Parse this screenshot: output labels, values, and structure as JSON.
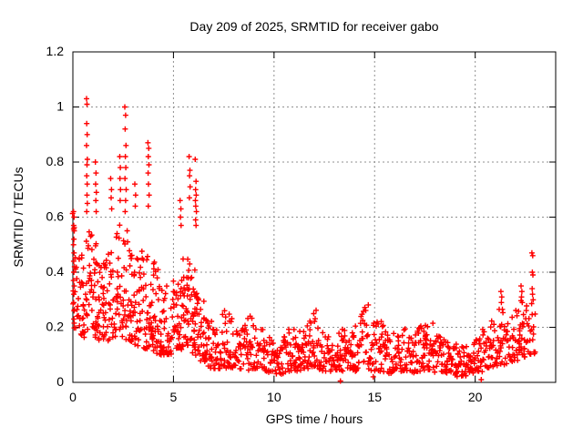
{
  "page": {
    "background": "#ffffff"
  },
  "chart_data": {
    "type": "scatter",
    "title": "Day 209 of 2025, SRMTID for receiver gabo",
    "xlabel": "GPS time / hours",
    "ylabel": "SRMTID / TECUs",
    "xlim": [
      0,
      24
    ],
    "ylim": [
      0,
      1.2
    ],
    "xticks": [
      0,
      5,
      10,
      15,
      20
    ],
    "yticks": [
      0,
      0.2,
      0.4,
      0.6,
      0.8,
      1,
      1.2
    ],
    "grid": true,
    "legend": "none",
    "marker": "plus",
    "marker_size_px": 7,
    "colors": {
      "points": "#ff0000",
      "grid": "#909090",
      "axis": "#000000",
      "text": "#000000"
    },
    "series_name": "SRMTID",
    "outlier_points": [
      [
        0.03,
        0.62
      ],
      [
        0.06,
        0.6
      ],
      [
        0.04,
        0.57
      ],
      [
        0.07,
        0.55
      ],
      [
        0.05,
        0.52
      ],
      [
        0.03,
        0.5
      ],
      [
        0.06,
        0.47
      ],
      [
        0.04,
        0.44
      ],
      [
        0.08,
        0.42
      ],
      [
        0.05,
        0.4
      ],
      [
        0.03,
        0.37
      ],
      [
        0.07,
        0.35
      ],
      [
        0.05,
        0.32
      ],
      [
        0.04,
        0.29
      ],
      [
        0.06,
        0.26
      ],
      [
        0.05,
        0.23
      ],
      [
        0.68,
        1.03
      ],
      [
        0.7,
        1.01
      ],
      [
        0.69,
        0.94
      ],
      [
        0.71,
        0.9
      ],
      [
        0.68,
        0.86
      ],
      [
        0.72,
        0.81
      ],
      [
        0.7,
        0.79
      ],
      [
        0.69,
        0.75
      ],
      [
        0.71,
        0.72
      ],
      [
        0.7,
        0.68
      ],
      [
        0.72,
        0.65
      ],
      [
        0.69,
        0.62
      ],
      [
        1.12,
        0.8
      ],
      [
        1.15,
        0.76
      ],
      [
        1.13,
        0.72
      ],
      [
        1.17,
        0.69
      ],
      [
        1.14,
        0.66
      ],
      [
        1.16,
        0.62
      ],
      [
        1.88,
        0.74
      ],
      [
        1.92,
        0.7
      ],
      [
        1.9,
        0.67
      ],
      [
        1.93,
        0.63
      ],
      [
        2.33,
        0.82
      ],
      [
        2.36,
        0.78
      ],
      [
        2.34,
        0.74
      ],
      [
        2.37,
        0.7
      ],
      [
        2.35,
        0.66
      ],
      [
        2.58,
        1.0
      ],
      [
        2.62,
        0.97
      ],
      [
        2.6,
        0.92
      ],
      [
        2.64,
        0.86
      ],
      [
        2.61,
        0.82
      ],
      [
        2.63,
        0.78
      ],
      [
        2.59,
        0.74
      ],
      [
        2.65,
        0.7
      ],
      [
        2.62,
        0.66
      ],
      [
        2.6,
        0.62
      ],
      [
        3.08,
        0.72
      ],
      [
        3.12,
        0.68
      ],
      [
        3.1,
        0.64
      ],
      [
        3.73,
        0.87
      ],
      [
        3.77,
        0.85
      ],
      [
        3.75,
        0.82
      ],
      [
        3.78,
        0.79
      ],
      [
        3.74,
        0.76
      ],
      [
        3.76,
        0.72
      ],
      [
        3.79,
        0.68
      ],
      [
        3.75,
        0.64
      ],
      [
        5.33,
        0.66
      ],
      [
        5.37,
        0.63
      ],
      [
        5.35,
        0.6
      ],
      [
        5.38,
        0.57
      ],
      [
        5.78,
        0.82
      ],
      [
        5.82,
        0.77
      ],
      [
        5.8,
        0.75
      ],
      [
        5.83,
        0.71
      ],
      [
        5.79,
        0.67
      ],
      [
        6.08,
        0.81
      ],
      [
        6.12,
        0.73
      ],
      [
        6.1,
        0.7
      ],
      [
        6.13,
        0.68
      ],
      [
        6.09,
        0.66
      ],
      [
        6.11,
        0.64
      ],
      [
        6.14,
        0.62
      ],
      [
        6.1,
        0.59
      ],
      [
        6.12,
        0.57
      ],
      [
        21.28,
        0.33
      ],
      [
        21.32,
        0.31
      ],
      [
        21.3,
        0.29
      ],
      [
        22.28,
        0.35
      ],
      [
        22.32,
        0.33
      ],
      [
        22.3,
        0.31
      ],
      [
        22.34,
        0.29
      ],
      [
        22.82,
        0.47
      ],
      [
        22.86,
        0.46
      ],
      [
        22.84,
        0.4
      ],
      [
        22.87,
        0.39
      ],
      [
        22.83,
        0.34
      ],
      [
        22.85,
        0.32
      ],
      [
        22.88,
        0.3
      ],
      [
        13.3,
        0.005
      ],
      [
        14.93,
        0.02
      ],
      [
        20.3,
        0.01
      ]
    ],
    "band": {
      "seed": 209,
      "dt": 0.014,
      "power": 1.45,
      "t_start": 0.0,
      "t_end": 23.0,
      "cluster_switch_t": 6.8,
      "envelope": [
        [
          0.0,
          0.2,
          0.62
        ],
        [
          0.3,
          0.15,
          0.46
        ],
        [
          0.6,
          0.16,
          0.55
        ],
        [
          0.9,
          0.18,
          0.55
        ],
        [
          1.2,
          0.15,
          0.5
        ],
        [
          1.5,
          0.14,
          0.45
        ],
        [
          1.8,
          0.15,
          0.5
        ],
        [
          2.1,
          0.16,
          0.54
        ],
        [
          2.4,
          0.17,
          0.6
        ],
        [
          2.7,
          0.15,
          0.55
        ],
        [
          3.0,
          0.14,
          0.5
        ],
        [
          3.3,
          0.12,
          0.46
        ],
        [
          3.6,
          0.12,
          0.5
        ],
        [
          3.9,
          0.12,
          0.46
        ],
        [
          4.2,
          0.1,
          0.42
        ],
        [
          4.5,
          0.1,
          0.36
        ],
        [
          4.8,
          0.1,
          0.36
        ],
        [
          5.1,
          0.11,
          0.4
        ],
        [
          5.4,
          0.12,
          0.45
        ],
        [
          5.7,
          0.12,
          0.46
        ],
        [
          6.0,
          0.1,
          0.45
        ],
        [
          6.3,
          0.08,
          0.36
        ],
        [
          6.6,
          0.06,
          0.28
        ],
        [
          6.9,
          0.05,
          0.22
        ],
        [
          7.2,
          0.05,
          0.2
        ],
        [
          7.5,
          0.05,
          0.26
        ],
        [
          7.9,
          0.05,
          0.28
        ],
        [
          8.3,
          0.05,
          0.25
        ],
        [
          8.6,
          0.04,
          0.2
        ],
        [
          8.9,
          0.05,
          0.3
        ],
        [
          9.2,
          0.05,
          0.24
        ],
        [
          9.6,
          0.04,
          0.18
        ],
        [
          10.0,
          0.03,
          0.14
        ],
        [
          10.4,
          0.03,
          0.16
        ],
        [
          10.8,
          0.04,
          0.21
        ],
        [
          11.2,
          0.04,
          0.18
        ],
        [
          11.6,
          0.05,
          0.22
        ],
        [
          12.1,
          0.05,
          0.28
        ],
        [
          12.5,
          0.04,
          0.19
        ],
        [
          12.9,
          0.04,
          0.16
        ],
        [
          13.3,
          0.04,
          0.2
        ],
        [
          13.7,
          0.04,
          0.18
        ],
        [
          14.1,
          0.04,
          0.21
        ],
        [
          14.6,
          0.05,
          0.3
        ],
        [
          15.0,
          0.04,
          0.22
        ],
        [
          15.3,
          0.04,
          0.24
        ],
        [
          15.7,
          0.03,
          0.16
        ],
        [
          16.1,
          0.04,
          0.19
        ],
        [
          16.5,
          0.04,
          0.21
        ],
        [
          16.9,
          0.03,
          0.16
        ],
        [
          17.3,
          0.04,
          0.22
        ],
        [
          17.8,
          0.04,
          0.24
        ],
        [
          18.2,
          0.03,
          0.17
        ],
        [
          18.6,
          0.03,
          0.15
        ],
        [
          19.0,
          0.02,
          0.14
        ],
        [
          19.4,
          0.02,
          0.13
        ],
        [
          19.8,
          0.03,
          0.15
        ],
        [
          20.2,
          0.03,
          0.18
        ],
        [
          20.6,
          0.05,
          0.22
        ],
        [
          21.0,
          0.06,
          0.26
        ],
        [
          21.3,
          0.06,
          0.28
        ],
        [
          21.7,
          0.06,
          0.23
        ],
        [
          22.0,
          0.08,
          0.27
        ],
        [
          22.3,
          0.08,
          0.3
        ],
        [
          22.6,
          0.1,
          0.28
        ],
        [
          22.85,
          0.1,
          0.33
        ],
        [
          23.0,
          0.1,
          0.25
        ]
      ]
    }
  }
}
